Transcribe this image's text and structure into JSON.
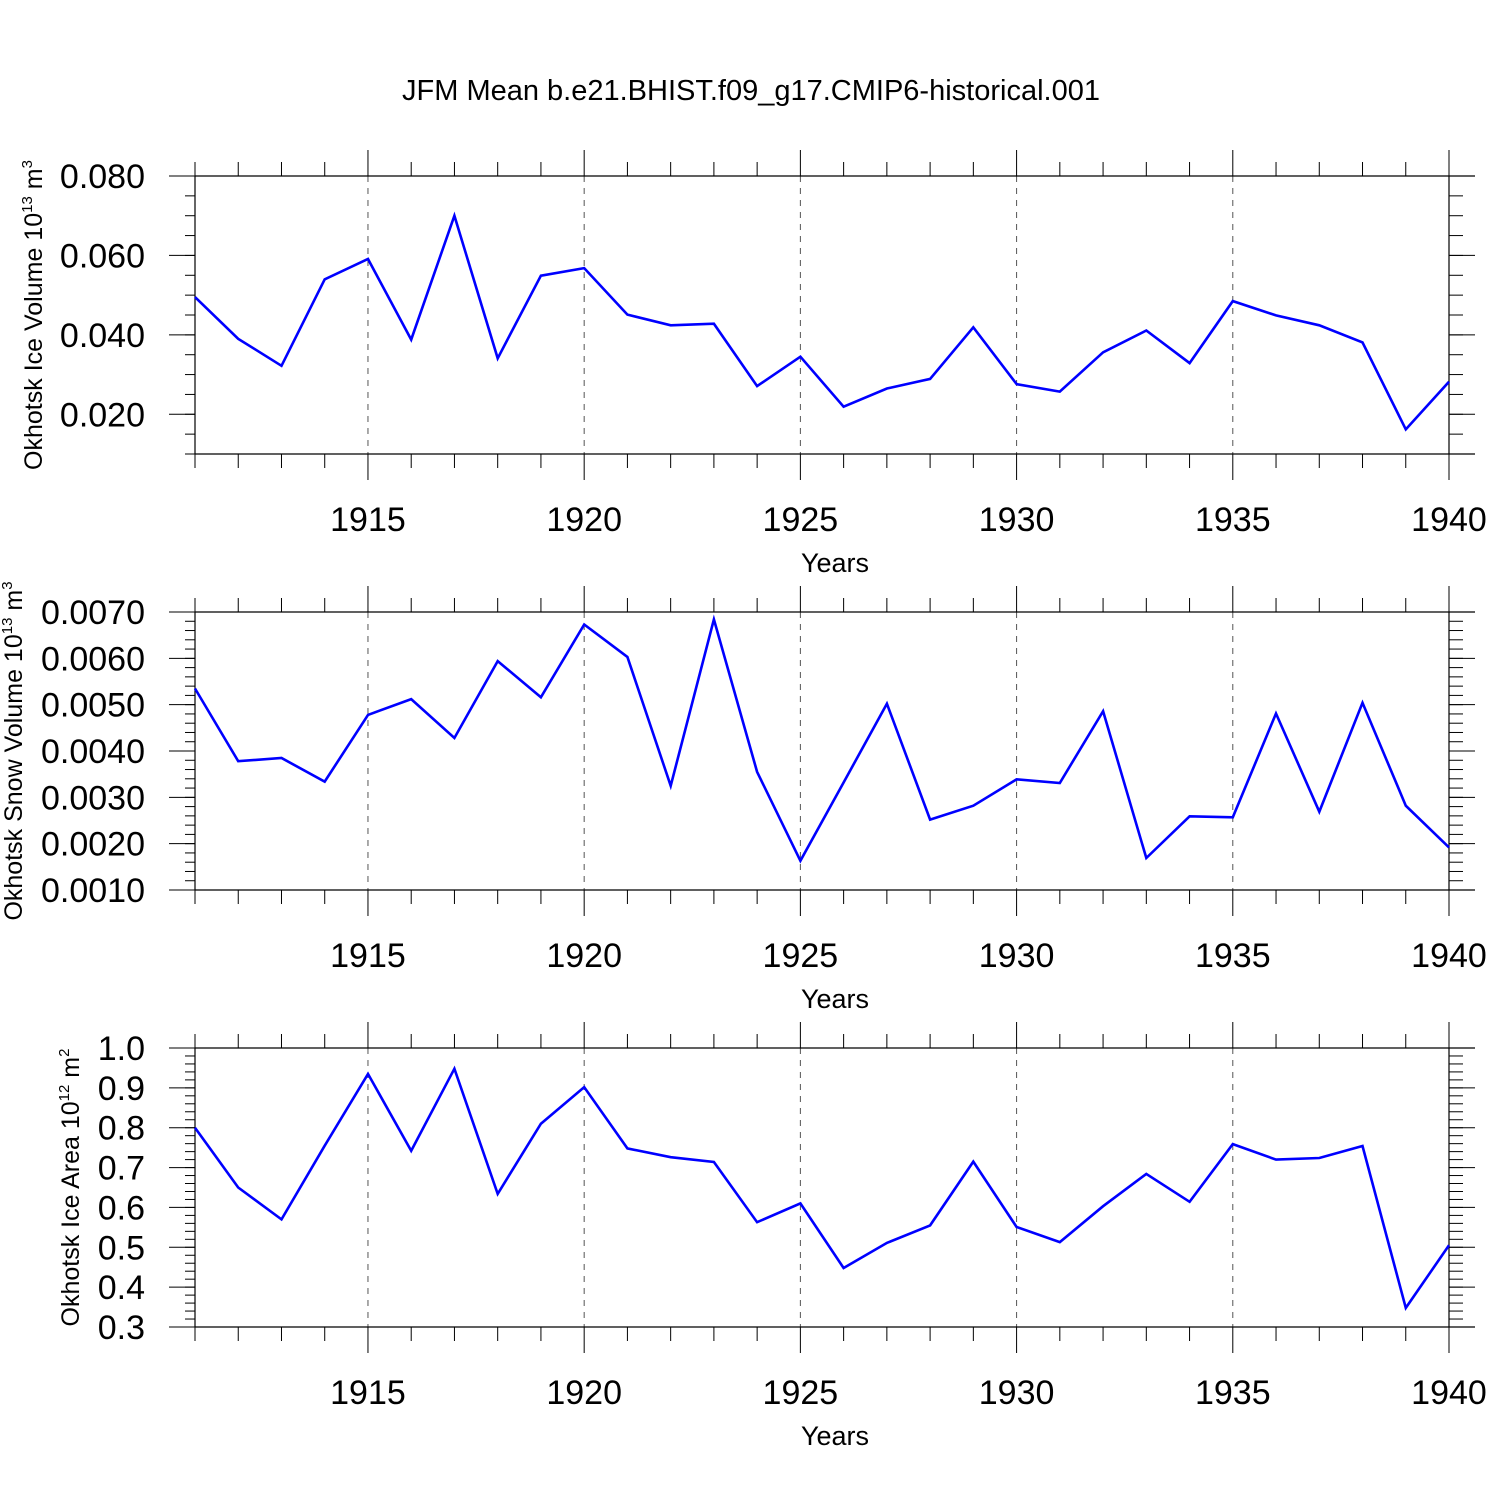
{
  "title": "JFM Mean b.e21.BHIST.f09_g17.CMIP6-historical.001",
  "chart_data": [
    {
      "type": "line",
      "ylabel": "Okhotsk Ice Volume 10",
      "ylabel_exp": "13",
      "ylabel_unit": " m",
      "ylabel_unit_exp": "3",
      "xlabel": "Years",
      "xlim": [
        1911,
        1940
      ],
      "ylim": [
        0.01,
        0.08
      ],
      "yticks": [
        0.02,
        0.04,
        0.06,
        0.08
      ],
      "yticklabels": [
        "0.020",
        "0.040",
        "0.060",
        "0.080"
      ],
      "yminor_step": 0.005,
      "xticks": [
        1915,
        1920,
        1925,
        1930,
        1935,
        1940
      ],
      "xticklabels": [
        "1915",
        "1920",
        "1925",
        "1930",
        "1935",
        "1940"
      ],
      "x": [
        1911,
        1912,
        1913,
        1914,
        1915,
        1916,
        1917,
        1918,
        1919,
        1920,
        1921,
        1922,
        1923,
        1924,
        1925,
        1926,
        1927,
        1928,
        1929,
        1930,
        1931,
        1932,
        1933,
        1934,
        1935,
        1936,
        1937,
        1938,
        1939,
        1940
      ],
      "values": [
        0.0495,
        0.039,
        0.0322,
        0.054,
        0.0591,
        0.0388,
        0.07,
        0.0341,
        0.0549,
        0.0568,
        0.0451,
        0.0424,
        0.0428,
        0.0271,
        0.0345,
        0.0219,
        0.0265,
        0.0289,
        0.0419,
        0.0276,
        0.0257,
        0.0356,
        0.0411,
        0.0329,
        0.0485,
        0.0449,
        0.0424,
        0.0381,
        0.0162,
        0.0282
      ]
    },
    {
      "type": "line",
      "ylabel": "Okhotsk Snow Volume 10",
      "ylabel_exp": "13",
      "ylabel_unit": " m",
      "ylabel_unit_exp": "3",
      "xlabel": "Years",
      "xlim": [
        1911,
        1940
      ],
      "ylim": [
        0.001,
        0.007
      ],
      "yticks": [
        0.001,
        0.002,
        0.003,
        0.004,
        0.005,
        0.006,
        0.007
      ],
      "yticklabels": [
        "0.0010",
        "0.0020",
        "0.0030",
        "0.0040",
        "0.0050",
        "0.0060",
        "0.0070"
      ],
      "yminor_step": 0.0002,
      "xticks": [
        1915,
        1920,
        1925,
        1930,
        1935,
        1940
      ],
      "xticklabels": [
        "1915",
        "1920",
        "1925",
        "1930",
        "1935",
        "1940"
      ],
      "x": [
        1911,
        1912,
        1913,
        1914,
        1915,
        1916,
        1917,
        1918,
        1919,
        1920,
        1921,
        1922,
        1923,
        1924,
        1925,
        1926,
        1927,
        1928,
        1929,
        1930,
        1931,
        1932,
        1933,
        1934,
        1935,
        1936,
        1937,
        1938,
        1939,
        1940
      ],
      "values": [
        0.00535,
        0.00378,
        0.00385,
        0.00334,
        0.00478,
        0.00512,
        0.00428,
        0.00594,
        0.00516,
        0.00673,
        0.00603,
        0.00325,
        0.00684,
        0.00355,
        0.00163,
        0.00332,
        0.00502,
        0.00252,
        0.00282,
        0.00339,
        0.00331,
        0.00486,
        0.00169,
        0.00259,
        0.00257,
        0.00481,
        0.00269,
        0.00504,
        0.00282,
        0.00192
      ]
    },
    {
      "type": "line",
      "ylabel": "Okhotsk Ice Area 10",
      "ylabel_exp": "12",
      "ylabel_unit": " m",
      "ylabel_unit_exp": "2",
      "xlabel": "Years",
      "xlim": [
        1911,
        1940
      ],
      "ylim": [
        0.3,
        1.0
      ],
      "yticks": [
        0.3,
        0.4,
        0.5,
        0.6,
        0.7,
        0.8,
        0.9,
        1.0
      ],
      "yticklabels": [
        "0.3",
        "0.4",
        "0.5",
        "0.6",
        "0.7",
        "0.8",
        "0.9",
        "1.0"
      ],
      "yminor_step": 0.02,
      "xticks": [
        1915,
        1920,
        1925,
        1930,
        1935,
        1940
      ],
      "xticklabels": [
        "1915",
        "1920",
        "1925",
        "1930",
        "1935",
        "1940"
      ],
      "x": [
        1911,
        1912,
        1913,
        1914,
        1915,
        1916,
        1917,
        1918,
        1919,
        1920,
        1921,
        1922,
        1923,
        1924,
        1925,
        1926,
        1927,
        1928,
        1929,
        1930,
        1931,
        1932,
        1933,
        1934,
        1935,
        1936,
        1937,
        1938,
        1939,
        1940
      ],
      "values": [
        0.8,
        0.65,
        0.57,
        0.755,
        0.935,
        0.742,
        0.948,
        0.634,
        0.81,
        0.902,
        0.748,
        0.726,
        0.714,
        0.563,
        0.61,
        0.448,
        0.511,
        0.555,
        0.715,
        0.551,
        0.513,
        0.603,
        0.684,
        0.614,
        0.759,
        0.72,
        0.724,
        0.754,
        0.348,
        0.505
      ]
    }
  ]
}
